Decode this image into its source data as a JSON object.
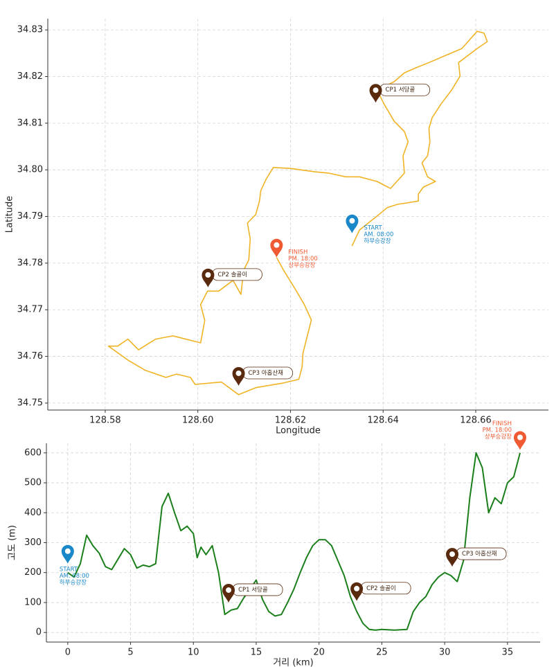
{
  "chart_data": [
    {
      "type": "line",
      "xlabel": "Longitude",
      "ylabel": "Latitude",
      "xlim": [
        128.5676,
        128.6757
      ],
      "ylim": [
        34.7485,
        34.8324
      ],
      "xticks": [
        128.58,
        {
          "value": 128.6,
          "label": "128.60"
        },
        128.62,
        128.64,
        128.66
      ],
      "yticks": [
        34.75,
        34.76,
        34.77,
        34.78,
        34.79,
        {
          "value": 34.8,
          "label": "34.80"
        },
        34.81,
        34.82,
        34.83
      ],
      "grid": true,
      "x": [
        128.6333,
        128.6349,
        128.6391,
        128.6409,
        128.6431,
        128.6476,
        128.6476,
        128.6487,
        128.6513,
        128.6496,
        128.6484,
        128.6496,
        128.6501,
        128.6499,
        128.6506,
        128.6525,
        128.6548,
        128.6566,
        128.6563,
        128.6603,
        128.6625,
        128.6618,
        128.6603,
        128.657,
        128.6499,
        128.6469,
        128.6446,
        128.6424,
        128.6387,
        128.6402,
        128.6424,
        128.6446,
        128.6454,
        128.6443,
        128.6446,
        128.6416,
        128.6387,
        128.6349,
        128.6319,
        128.6282,
        128.6252,
        128.62,
        128.6163,
        128.6148,
        128.6136,
        128.6133,
        128.6125,
        128.6107,
        128.6113,
        128.611,
        128.6099,
        128.6093,
        128.6076,
        128.6045,
        128.6021,
        128.6006,
        128.6015,
        128.6006,
        128.5946,
        128.5909,
        128.5872,
        128.5849,
        128.5827,
        128.5807,
        128.5849,
        128.5887,
        128.5931,
        128.5954,
        128.5984,
        128.5994,
        128.6051,
        128.6088,
        128.6125,
        128.6185,
        128.6218,
        128.6225,
        128.6227,
        128.6245,
        128.623,
        128.6208,
        128.6185,
        128.617
      ],
      "series": [
        {
          "color": "#f0b323",
          "values": [
            34.7837,
            34.7871,
            34.7904,
            34.7919,
            34.7926,
            34.7933,
            34.7948,
            34.7963,
            34.7975,
            34.7985,
            34.8015,
            34.803,
            34.806,
            34.8089,
            34.8112,
            34.8141,
            34.8171,
            34.8201,
            34.823,
            34.826,
            34.8275,
            34.8293,
            34.8297,
            34.826,
            34.823,
            34.8218,
            34.8208,
            34.8189,
            34.8171,
            34.8141,
            34.8104,
            34.8082,
            34.806,
            34.803,
            34.7993,
            34.796,
            34.7975,
            34.7985,
            34.7985,
            34.7993,
            34.7996,
            34.8003,
            34.8005,
            34.7981,
            34.7956,
            34.7933,
            34.7904,
            34.7886,
            34.7852,
            34.7807,
            34.7785,
            34.7733,
            34.7763,
            34.774,
            34.774,
            34.7711,
            34.7677,
            34.7629,
            34.7644,
            34.7637,
            34.7614,
            34.7637,
            34.7622,
            34.7622,
            34.7592,
            34.757,
            34.7555,
            34.7562,
            34.7555,
            34.754,
            34.7545,
            34.7518,
            34.7533,
            34.7543,
            34.7551,
            34.7577,
            34.7607,
            34.7678,
            34.7711,
            34.7748,
            34.7785,
            34.7812
          ]
        }
      ],
      "markers": [
        {
          "label": "START",
          "time": "AM. 08:00",
          "place": "하부승강장",
          "x": 128.6333,
          "y": 34.7864,
          "color": "#1a87c9"
        },
        {
          "label": "FINISH",
          "time": "PM. 18:00",
          "place": "상부승강장",
          "x": 128.617,
          "y": 34.7812,
          "color": "#f05a32"
        },
        {
          "label": "CP1 서당골",
          "x": 128.6384,
          "y": 34.8144,
          "color": "#5a2a0e"
        },
        {
          "label": "CP2 솔골이",
          "x": 128.6022,
          "y": 34.7748,
          "color": "#5a2a0e"
        },
        {
          "label": "CP3 아홉산재",
          "x": 128.6088,
          "y": 34.7537,
          "color": "#5a2a0e"
        }
      ]
    },
    {
      "type": "line",
      "xlabel": "거리 (km)",
      "ylabel": "고도 (m)",
      "xlim": [
        -1.7,
        37.6
      ],
      "ylim": [
        -32,
        632
      ],
      "xticks": [
        0,
        5,
        10,
        15,
        20,
        25,
        30,
        35
      ],
      "yticks": [
        0,
        100,
        200,
        300,
        400,
        500,
        600
      ],
      "grid": true,
      "x": [
        0,
        0.5,
        1,
        1.5,
        2,
        2.5,
        3,
        3.5,
        4,
        4.5,
        5,
        5.5,
        6,
        6.5,
        7,
        7.5,
        8,
        8.5,
        9,
        9.5,
        10,
        10.3,
        10.6,
        11,
        11.5,
        12,
        12.5,
        13,
        13.5,
        14,
        14.5,
        15,
        15.5,
        16,
        16.5,
        17,
        17.5,
        18,
        18.5,
        19,
        19.5,
        20,
        20.5,
        21,
        21.5,
        22,
        22.5,
        23,
        23.5,
        24,
        24.5,
        25,
        26,
        27,
        27.5,
        28,
        28.5,
        29,
        29.5,
        30,
        30.5,
        31,
        31.5,
        32,
        32.5,
        33,
        33.5,
        34,
        34.5,
        35,
        35.5,
        36
      ],
      "series": [
        {
          "color": "#1a7f1a",
          "values": [
            200,
            185,
            230,
            325,
            290,
            265,
            220,
            210,
            245,
            280,
            260,
            215,
            225,
            220,
            230,
            420,
            465,
            400,
            340,
            355,
            330,
            250,
            285,
            260,
            290,
            200,
            60,
            75,
            80,
            115,
            145,
            175,
            110,
            70,
            55,
            60,
            100,
            145,
            200,
            250,
            290,
            310,
            310,
            290,
            240,
            190,
            120,
            70,
            30,
            10,
            8,
            10,
            8,
            10,
            70,
            100,
            120,
            160,
            185,
            200,
            190,
            170,
            240,
            450,
            600,
            550,
            400,
            450,
            430,
            500,
            520,
            600
          ]
        }
      ],
      "markers": [
        {
          "label": "START",
          "time": "AM. 08:00",
          "place": "하부승강장",
          "x": 0,
          "y": 230,
          "color": "#1a87c9"
        },
        {
          "label": "CP1 서당골",
          "x": 12.8,
          "y": 100,
          "color": "#5a2a0e"
        },
        {
          "label": "CP2 솔골이",
          "x": 23,
          "y": 105,
          "color": "#5a2a0e"
        },
        {
          "label": "CP3 아홉산재",
          "x": 30.6,
          "y": 220,
          "color": "#5a2a0e"
        },
        {
          "label": "FINISH",
          "time": "PM. 18:00",
          "place": "상부승강장",
          "x": 36,
          "y": 610,
          "color": "#f05a32"
        }
      ]
    }
  ]
}
